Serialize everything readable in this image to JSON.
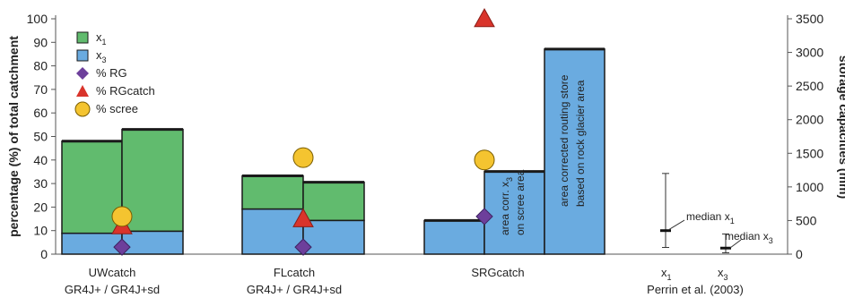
{
  "colors": {
    "x1": "#61bb6e",
    "x3": "#6aabe0",
    "rg": "#6d3f9b",
    "rgcatch": "#d9342b",
    "scree": "#f4c430",
    "axis": "#555555"
  },
  "chart_data": {
    "type": "bar",
    "ylabel": "percentage (%) of total catchment",
    "y2label": "storage capacities (mm)",
    "ylim": [
      0,
      100
    ],
    "y2lim": [
      0,
      3500
    ],
    "yticks": [
      "0",
      "10",
      "20",
      "30",
      "40",
      "50",
      "60",
      "70",
      "80",
      "90",
      "100"
    ],
    "y2ticks": [
      "0",
      "500",
      "1000",
      "1500",
      "2000",
      "2500",
      "3000",
      "3500"
    ],
    "grid": false,
    "legend_position": "top-left",
    "legend": [
      {
        "key": "x1",
        "label": "x",
        "sub": "1",
        "marker": "square"
      },
      {
        "key": "x3",
        "label": "x",
        "sub": "3",
        "marker": "square"
      },
      {
        "key": "rg",
        "label": "% RG",
        "sub": "",
        "marker": "diamond"
      },
      {
        "key": "rgcatch",
        "label": "% RGcatch",
        "sub": "",
        "marker": "triangle"
      },
      {
        "key": "scree",
        "label": "% scree",
        "sub": "",
        "marker": "circle"
      }
    ],
    "groups": [
      {
        "name": "UWcatch",
        "line2": "GR4J+ / GR4J+sd",
        "bars": [
          {
            "model": "GR4J+",
            "x1_mm": 1680,
            "x3_mm": 310
          },
          {
            "model": "GR4J+sd",
            "x1_mm": 1855,
            "x3_mm": 340
          }
        ],
        "pct_rg": 3,
        "pct_rgcatch": 12,
        "pct_scree": 16
      },
      {
        "name": "FLcatch",
        "line2": "GR4J+ / GR4J+sd",
        "bars": [
          {
            "model": "GR4J+",
            "x1_mm": 1165,
            "x3_mm": 670
          },
          {
            "model": "GR4J+sd",
            "x1_mm": 1070,
            "x3_mm": 500
          }
        ],
        "pct_rg": 3,
        "pct_rgcatch": 15,
        "pct_scree": 41
      },
      {
        "name": "SRGcatch",
        "line2": "",
        "bars": [
          {
            "model": "x3",
            "x3_mm": 500
          },
          {
            "model": "area corr. x3",
            "x3_mm": 1230
          },
          {
            "model": "area corrected routing store",
            "x3_mm": 3050
          }
        ],
        "pct_rg": 16,
        "pct_rgcatch": 100,
        "pct_scree": 40
      }
    ],
    "perrin": {
      "name": "Perrin et al. (2003)",
      "x1": {
        "label": "x",
        "sub": "1",
        "median_mm": 350,
        "low_mm": 100,
        "high_mm": 1200
      },
      "x3": {
        "label": "x",
        "sub": "3",
        "median_mm": 90,
        "low_mm": 20,
        "high_mm": 300
      }
    },
    "annotations": {
      "area_corr": [
        "area corr. x",
        "on scree area"
      ],
      "area_corr_sub": "3",
      "routing": [
        "area corrected routing store",
        "based on rock glacier area"
      ],
      "median_x1": "median x",
      "median_x1_sub": "1",
      "median_x3": "median x",
      "median_x3_sub": "3"
    }
  }
}
